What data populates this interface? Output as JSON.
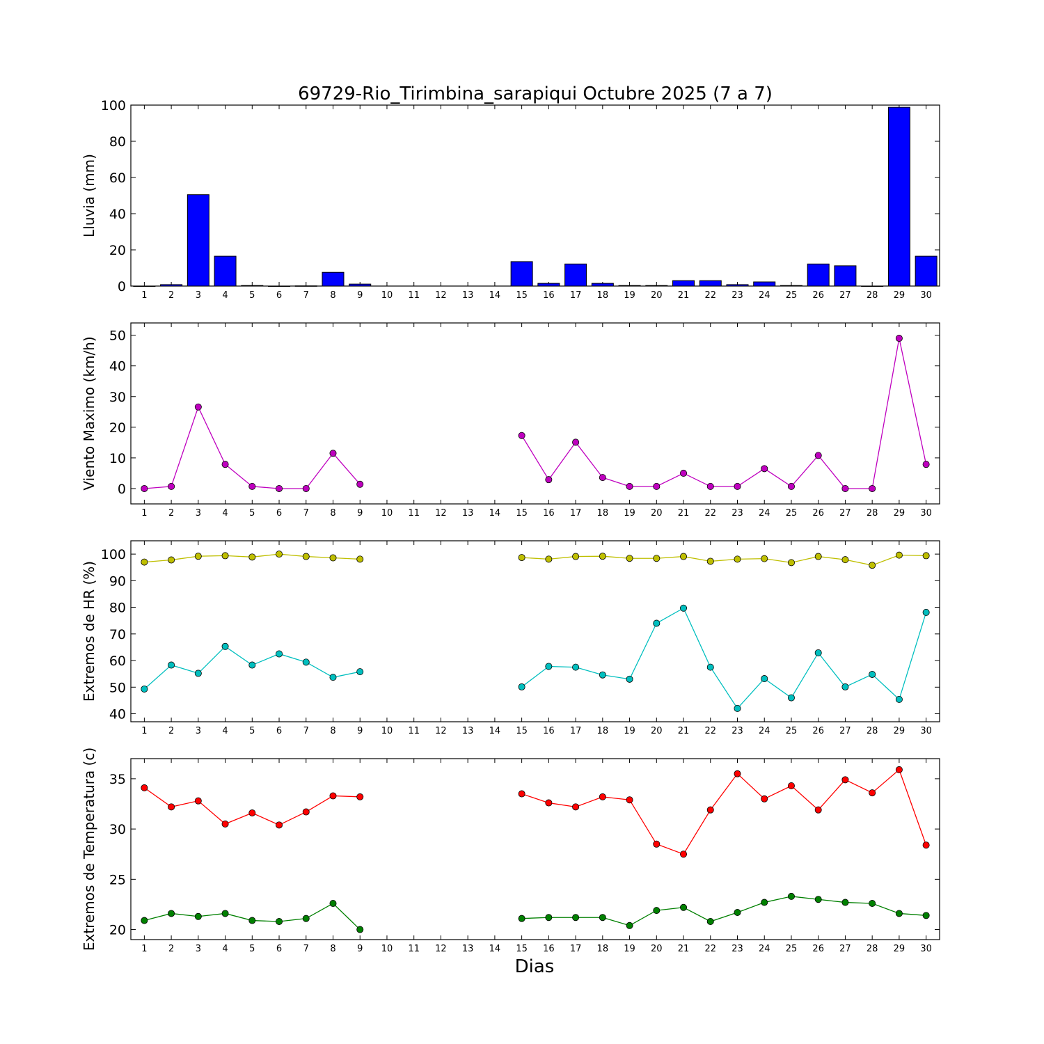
{
  "title": "69729-Rio_Tirimbina_sarapiqui Octubre 2025  (7 a 7)",
  "xlabel": "Dias",
  "chart_data": [
    {
      "type": "bar",
      "ylabel": "Lluvia (mm)",
      "ylim": [
        0,
        100
      ],
      "yticks": [
        0,
        20,
        40,
        60,
        80,
        100
      ],
      "categories": [
        "1",
        "2",
        "3",
        "4",
        "5",
        "6",
        "7",
        "8",
        "9",
        "10",
        "11",
        "12",
        "13",
        "14",
        "15",
        "16",
        "17",
        "18",
        "19",
        "20",
        "21",
        "22",
        "23",
        "24",
        "25",
        "26",
        "27",
        "28",
        "29",
        "30"
      ],
      "series": [
        {
          "color": "#0000ff",
          "values": [
            0,
            0.8,
            50.5,
            16.5,
            0.3,
            0,
            0.1,
            7.6,
            1.1,
            null,
            null,
            null,
            null,
            null,
            13.5,
            1.5,
            12.2,
            1.5,
            0.3,
            0.3,
            3.0,
            3.0,
            0.8,
            2.3,
            0.3,
            12.2,
            11.2,
            0,
            98.8,
            16.5
          ]
        }
      ]
    },
    {
      "type": "line",
      "ylabel": "Viento Maximo (km/h)",
      "ylim": [
        -5,
        54
      ],
      "yticks": [
        0,
        10,
        20,
        30,
        40,
        50
      ],
      "categories": [
        "1",
        "2",
        "3",
        "4",
        "5",
        "6",
        "7",
        "8",
        "9",
        "10",
        "11",
        "12",
        "13",
        "14",
        "15",
        "16",
        "17",
        "18",
        "19",
        "20",
        "21",
        "22",
        "23",
        "24",
        "25",
        "26",
        "27",
        "28",
        "29",
        "30"
      ],
      "series": [
        {
          "color": "#bf00bf",
          "values": [
            0,
            0.7,
            26.6,
            7.9,
            0.7,
            0,
            0,
            11.5,
            1.4,
            null,
            null,
            null,
            null,
            null,
            17.3,
            2.9,
            15.1,
            3.6,
            0.7,
            0.7,
            5.0,
            0.7,
            0.7,
            6.5,
            0.7,
            10.8,
            0,
            0,
            49.0,
            7.9
          ]
        }
      ]
    },
    {
      "type": "line",
      "ylabel": "Extremos de HR (%)",
      "ylim": [
        37,
        105
      ],
      "yticks": [
        40,
        50,
        60,
        70,
        80,
        90,
        100
      ],
      "categories": [
        "1",
        "2",
        "3",
        "4",
        "5",
        "6",
        "7",
        "8",
        "9",
        "10",
        "11",
        "12",
        "13",
        "14",
        "15",
        "16",
        "17",
        "18",
        "19",
        "20",
        "21",
        "22",
        "23",
        "24",
        "25",
        "26",
        "27",
        "28",
        "29",
        "30"
      ],
      "series": [
        {
          "color": "#bfbf00",
          "values": [
            97.0,
            97.8,
            99.2,
            99.4,
            98.9,
            100.0,
            99.1,
            98.6,
            98.1,
            null,
            null,
            null,
            null,
            null,
            98.7,
            98.1,
            99.1,
            99.2,
            98.4,
            98.4,
            99.1,
            97.3,
            98.1,
            98.3,
            96.8,
            99.1,
            97.9,
            95.8,
            99.6,
            99.4
          ]
        },
        {
          "color": "#00bfbf",
          "values": [
            49.3,
            58.3,
            55.2,
            65.3,
            58.3,
            62.5,
            59.4,
            53.7,
            55.8,
            null,
            null,
            null,
            null,
            null,
            50.1,
            57.8,
            57.5,
            54.6,
            53.0,
            74.0,
            79.7,
            57.5,
            42.0,
            53.2,
            46.0,
            62.9,
            50.1,
            54.8,
            45.4,
            78.1
          ]
        }
      ]
    },
    {
      "type": "line",
      "ylabel": "Extremos de Temperatura (c)",
      "ylim": [
        19,
        37
      ],
      "yticks": [
        20,
        25,
        30,
        35
      ],
      "categories": [
        "1",
        "2",
        "3",
        "4",
        "5",
        "6",
        "7",
        "8",
        "9",
        "10",
        "11",
        "12",
        "13",
        "14",
        "15",
        "16",
        "17",
        "18",
        "19",
        "20",
        "21",
        "22",
        "23",
        "24",
        "25",
        "26",
        "27",
        "28",
        "29",
        "30"
      ],
      "series": [
        {
          "color": "#ff0000",
          "values": [
            34.1,
            32.2,
            32.8,
            30.5,
            31.6,
            30.4,
            31.7,
            33.3,
            33.2,
            null,
            null,
            null,
            null,
            null,
            33.5,
            32.6,
            32.2,
            33.2,
            32.9,
            28.5,
            27.5,
            31.9,
            35.5,
            33.0,
            34.3,
            31.9,
            34.9,
            33.6,
            35.9,
            28.4
          ]
        },
        {
          "color": "#008000",
          "values": [
            20.9,
            21.6,
            21.3,
            21.6,
            20.9,
            20.8,
            21.1,
            22.6,
            20.0,
            null,
            null,
            null,
            null,
            null,
            21.1,
            21.2,
            21.2,
            21.2,
            20.4,
            21.9,
            22.2,
            20.8,
            21.7,
            22.7,
            23.3,
            23.0,
            22.7,
            22.6,
            21.6,
            21.4
          ]
        }
      ]
    }
  ]
}
